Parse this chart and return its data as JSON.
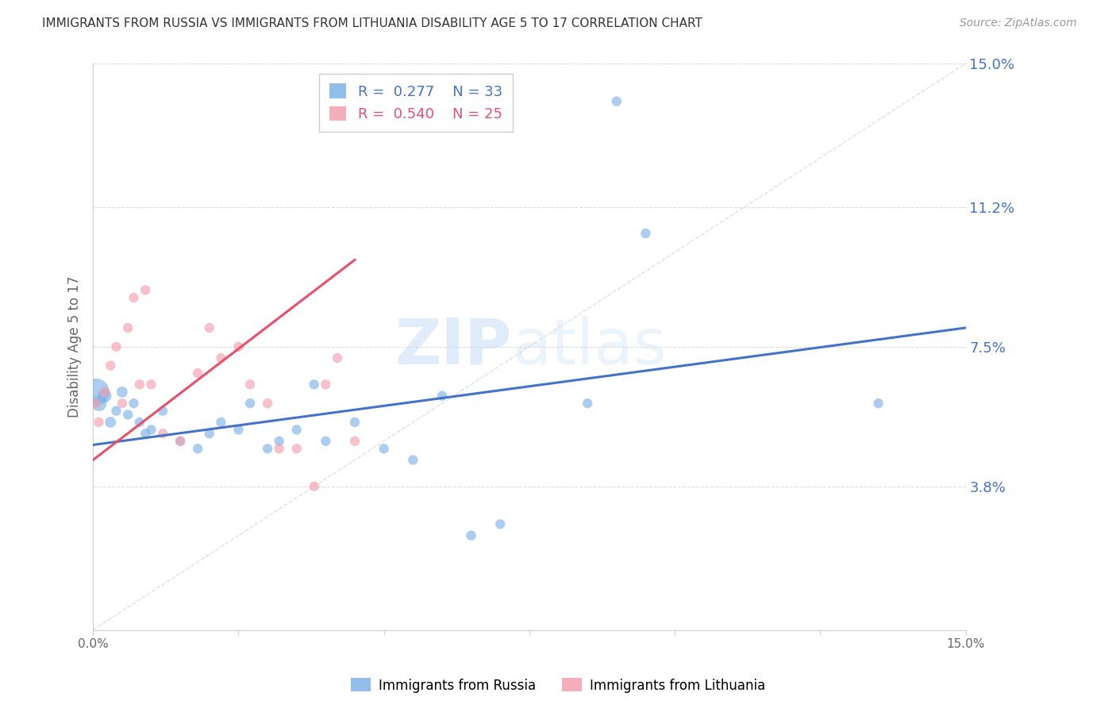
{
  "title": "IMMIGRANTS FROM RUSSIA VS IMMIGRANTS FROM LITHUANIA DISABILITY AGE 5 TO 17 CORRELATION CHART",
  "source": "Source: ZipAtlas.com",
  "ylabel": "Disability Age 5 to 17",
  "xmin": 0.0,
  "xmax": 0.15,
  "ymin": 0.0,
  "ymax": 0.15,
  "yticks": [
    0.038,
    0.075,
    0.112,
    0.15
  ],
  "ytick_labels": [
    "3.8%",
    "7.5%",
    "11.2%",
    "15.0%"
  ],
  "grid_color": "#dddddd",
  "background_color": "#ffffff",
  "blue_color": "#7eb3e8",
  "pink_color": "#f4a0b0",
  "blue_line_color": "#4472c4",
  "pink_line_color": "#e8506a",
  "diag_line_color": "#cccccc",
  "axis_label_color": "#4472c4",
  "legend_r_blue": "0.277",
  "legend_n_blue": "33",
  "legend_r_pink": "0.540",
  "legend_n_pink": "25",
  "legend_label_blue": "Immigrants from Russia",
  "legend_label_pink": "Immigrants from Lithuania",
  "watermark_zip": "ZIP",
  "watermark_atlas": "atlas",
  "russia_x": [
    0.0005,
    0.001,
    0.002,
    0.003,
    0.004,
    0.005,
    0.006,
    0.007,
    0.008,
    0.009,
    0.01,
    0.012,
    0.015,
    0.018,
    0.02,
    0.022,
    0.025,
    0.027,
    0.03,
    0.032,
    0.035,
    0.038,
    0.04,
    0.045,
    0.05,
    0.055,
    0.06,
    0.065,
    0.07,
    0.085,
    0.09,
    0.095,
    0.135
  ],
  "russia_y": [
    0.063,
    0.06,
    0.062,
    0.055,
    0.058,
    0.063,
    0.057,
    0.06,
    0.055,
    0.052,
    0.053,
    0.058,
    0.05,
    0.048,
    0.052,
    0.055,
    0.053,
    0.06,
    0.048,
    0.05,
    0.053,
    0.065,
    0.05,
    0.055,
    0.048,
    0.045,
    0.062,
    0.025,
    0.028,
    0.06,
    0.14,
    0.105,
    0.06
  ],
  "russia_sizes": [
    600,
    200,
    150,
    100,
    80,
    100,
    80,
    80,
    80,
    80,
    80,
    80,
    80,
    80,
    80,
    80,
    80,
    80,
    80,
    80,
    80,
    80,
    80,
    80,
    80,
    80,
    80,
    80,
    80,
    80,
    80,
    80,
    80
  ],
  "lithuania_x": [
    0.0005,
    0.001,
    0.002,
    0.003,
    0.004,
    0.005,
    0.006,
    0.007,
    0.008,
    0.009,
    0.01,
    0.012,
    0.015,
    0.018,
    0.02,
    0.022,
    0.025,
    0.027,
    0.03,
    0.032,
    0.035,
    0.038,
    0.04,
    0.042,
    0.045
  ],
  "lithuania_y": [
    0.06,
    0.055,
    0.063,
    0.07,
    0.075,
    0.06,
    0.08,
    0.088,
    0.065,
    0.09,
    0.065,
    0.052,
    0.05,
    0.068,
    0.08,
    0.072,
    0.075,
    0.065,
    0.06,
    0.048,
    0.048,
    0.038,
    0.065,
    0.072,
    0.05
  ],
  "lithuania_sizes": [
    80,
    80,
    80,
    80,
    80,
    80,
    80,
    80,
    80,
    80,
    80,
    80,
    80,
    80,
    80,
    80,
    80,
    80,
    80,
    80,
    80,
    80,
    80,
    80,
    80
  ],
  "blue_trend_x": [
    0.0,
    0.15
  ],
  "blue_trend_y": [
    0.049,
    0.08
  ],
  "pink_trend_x": [
    0.0,
    0.045
  ],
  "pink_trend_y": [
    0.045,
    0.098
  ]
}
